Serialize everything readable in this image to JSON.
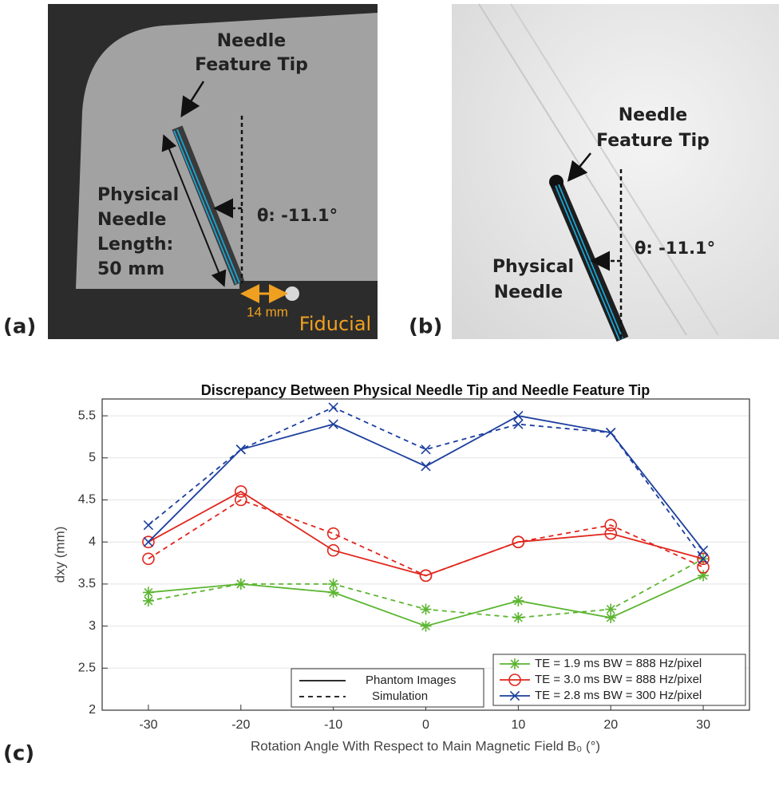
{
  "panel_a": {
    "label": "(a)",
    "feature_tip": [
      "Needle",
      "Feature Tip"
    ],
    "needle_length": [
      "Physical",
      "Needle",
      "Length:",
      "50 mm"
    ],
    "angle": "θ: -11.1°",
    "distance": "14 mm",
    "fiducial": "Fiducial"
  },
  "panel_b": {
    "label": "(b)",
    "feature_tip": [
      "Needle",
      "Feature Tip"
    ],
    "needle": [
      "Physical",
      "Needle"
    ],
    "angle": "θ: -11.1°"
  },
  "panel_c": {
    "label": "(c)"
  },
  "chart_data": {
    "type": "line",
    "title": "Discrepancy Between Physical Needle Tip and Needle Feature Tip",
    "xlabel": "Rotation Angle With Respect to Main Magnetic Field B₀ (°)",
    "ylabel": "dxy (mm)",
    "x": [
      -30,
      -20,
      -10,
      0,
      10,
      20,
      30
    ],
    "series": [
      {
        "name": "TE = 1.9 ms BW = 888 Hz/pixel",
        "color": "#5cb531",
        "marker": "asterisk",
        "values": [
          3.4,
          3.5,
          3.4,
          3.0,
          3.3,
          3.1,
          3.6
        ],
        "simulation_values": [
          3.3,
          3.5,
          3.5,
          3.2,
          3.1,
          3.2,
          3.8
        ]
      },
      {
        "name": "TE = 3.0 ms BW = 888 Hz/pixel",
        "color": "#e0261c",
        "marker": "circle",
        "values": [
          4.0,
          4.6,
          3.9,
          3.6,
          4.0,
          4.1,
          3.8
        ],
        "simulation_values": [
          3.8,
          4.5,
          4.1,
          3.6,
          4.0,
          4.2,
          3.7
        ]
      },
      {
        "name": "TE = 2.8 ms BW = 300 Hz/pixel",
        "color": "#1c3f9e",
        "marker": "x",
        "values": [
          4.0,
          5.1,
          5.4,
          4.9,
          5.5,
          5.3,
          3.9
        ],
        "simulation_values": [
          4.2,
          5.1,
          5.6,
          5.1,
          5.4,
          5.3,
          3.8
        ]
      }
    ],
    "line_styles": [
      "Phantom Images",
      "Simulation"
    ],
    "xlim": [
      -35,
      35
    ],
    "xticks": [
      -30,
      -20,
      -10,
      0,
      10,
      20,
      30
    ],
    "ylim": [
      2,
      5.7
    ],
    "yticks": [
      2,
      2.5,
      3,
      3.5,
      4,
      4.5,
      5,
      5.5
    ],
    "grid": true
  }
}
